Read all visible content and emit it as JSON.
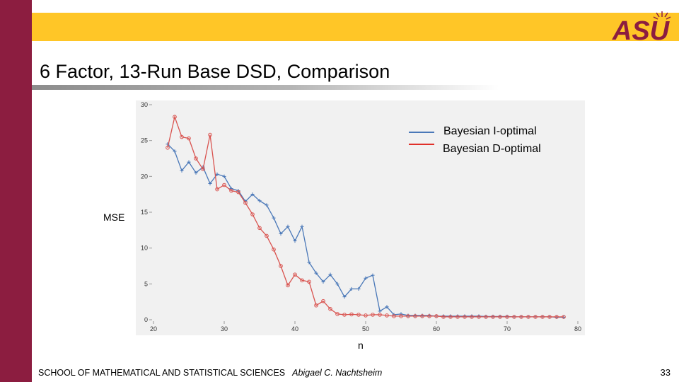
{
  "slide": {
    "title": "6 Factor, 13-Run Base DSD, Comparison",
    "footer_school": "SCHOOL OF MATHEMATICAL AND STATISTICAL SCIENCES",
    "footer_author": "Abigael C. Nachtsheim",
    "page_number": "33",
    "logo_text": "ASU",
    "colors": {
      "maroon": "#8c1d40",
      "gold": "#ffc627"
    }
  },
  "chart_data": {
    "type": "line",
    "title": "",
    "xlabel": "n",
    "ylabel": "MSE",
    "xlim": [
      20,
      80
    ],
    "ylim": [
      0,
      30
    ],
    "xticks": [
      20,
      30,
      40,
      50,
      60,
      70,
      80
    ],
    "yticks": [
      0,
      5,
      10,
      15,
      20,
      25,
      30
    ],
    "legend": {
      "position": "top-right"
    },
    "series": [
      {
        "name": "Bayesian I-optimal",
        "color": "#4a78b8",
        "marker": "plus",
        "x": [
          22,
          23,
          24,
          25,
          26,
          27,
          28,
          29,
          30,
          31,
          32,
          33,
          34,
          35,
          36,
          37,
          38,
          39,
          40,
          41,
          42,
          43,
          44,
          45,
          46,
          47,
          48,
          49,
          50,
          51,
          52,
          53,
          54,
          55,
          56,
          57,
          58,
          59,
          60,
          61,
          62,
          63,
          64,
          65,
          66,
          67,
          68,
          69,
          70,
          71,
          72,
          73,
          74,
          75,
          76,
          77,
          78
        ],
        "y": [
          24.5,
          23.5,
          20.8,
          22.0,
          20.5,
          21.3,
          19.0,
          20.3,
          20.0,
          18.3,
          18.0,
          16.5,
          17.5,
          16.6,
          16.0,
          14.2,
          12.0,
          13.0,
          11.0,
          13.0,
          8.0,
          6.5,
          5.3,
          6.3,
          5.0,
          3.2,
          4.3,
          4.3,
          5.8,
          6.2,
          1.2,
          1.8,
          0.7,
          0.8,
          0.6,
          0.6,
          0.6,
          0.6,
          0.5,
          0.5,
          0.5,
          0.5,
          0.5,
          0.5,
          0.5,
          0.45,
          0.45,
          0.45,
          0.45,
          0.4,
          0.4,
          0.4,
          0.4,
          0.4,
          0.4,
          0.35,
          0.35
        ]
      },
      {
        "name": "Bayesian D-optimal",
        "color": "#d9534f",
        "marker": "circle",
        "x": [
          22,
          23,
          24,
          25,
          26,
          27,
          28,
          29,
          30,
          31,
          32,
          33,
          34,
          35,
          36,
          37,
          38,
          39,
          40,
          41,
          42,
          43,
          44,
          45,
          46,
          47,
          48,
          49,
          50,
          51,
          52,
          53,
          54,
          55,
          56,
          57,
          58,
          59,
          60,
          61,
          62,
          63,
          64,
          65,
          66,
          67,
          68,
          69,
          70,
          71,
          72,
          73,
          74,
          75,
          76,
          77,
          78
        ],
        "y": [
          24.0,
          28.3,
          25.5,
          25.3,
          22.5,
          21.0,
          25.8,
          18.2,
          18.8,
          18.0,
          17.8,
          16.3,
          14.7,
          12.8,
          11.7,
          9.8,
          7.5,
          4.8,
          6.3,
          5.5,
          5.3,
          2.0,
          2.6,
          1.5,
          0.8,
          0.7,
          0.75,
          0.7,
          0.6,
          0.7,
          0.7,
          0.6,
          0.5,
          0.5,
          0.5,
          0.5,
          0.5,
          0.5,
          0.5,
          0.4,
          0.4,
          0.4,
          0.4,
          0.4,
          0.4,
          0.4,
          0.4,
          0.4,
          0.4,
          0.4,
          0.4,
          0.4,
          0.4,
          0.4,
          0.4,
          0.4,
          0.4
        ]
      }
    ]
  }
}
